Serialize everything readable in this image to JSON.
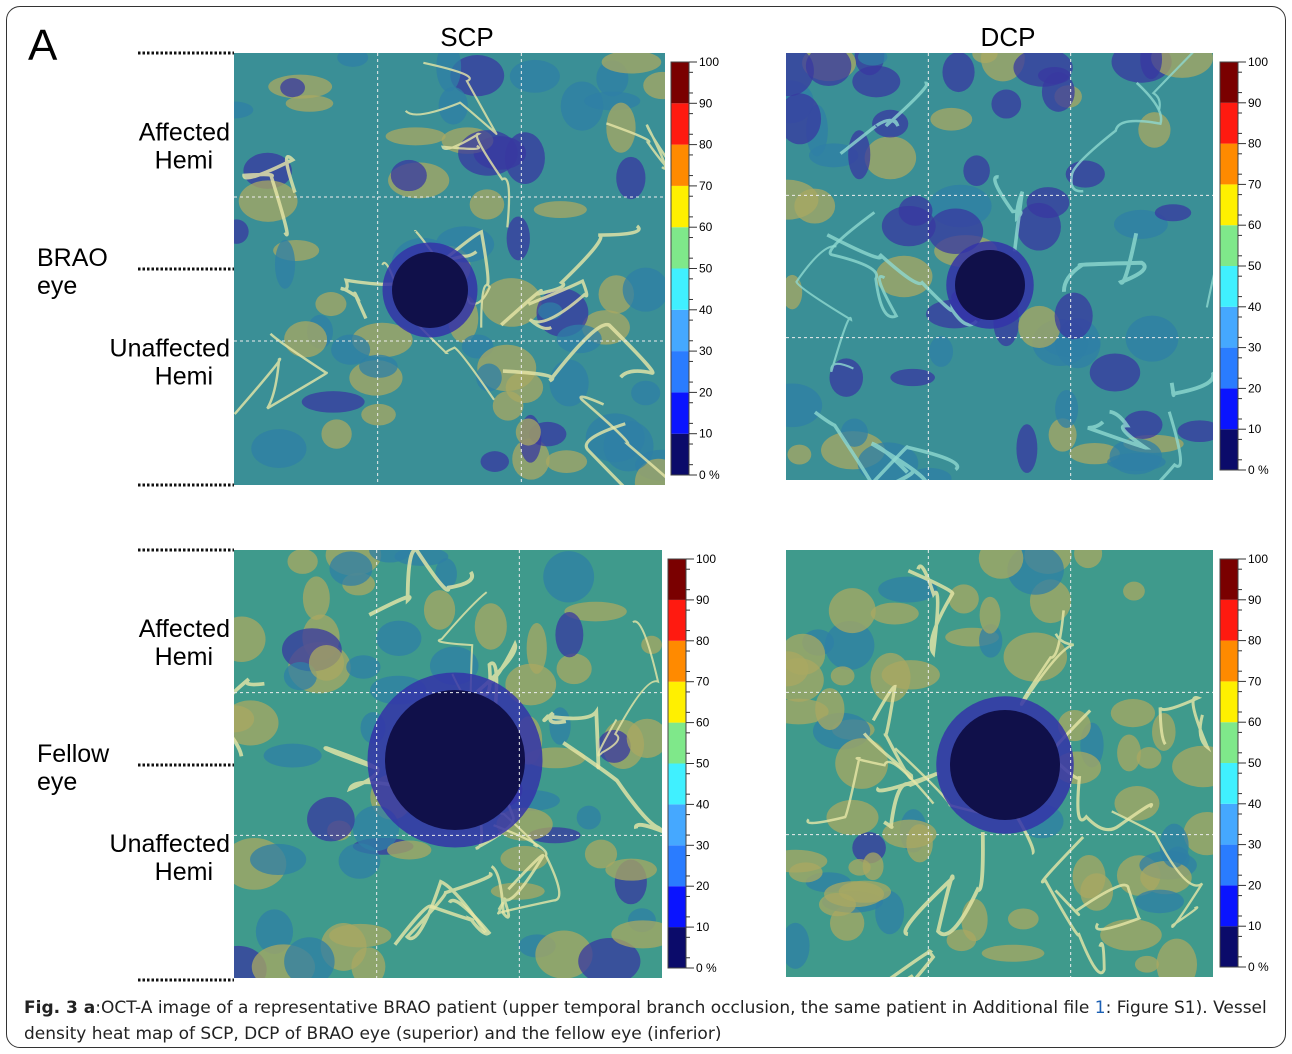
{
  "header": {
    "letter": "A"
  },
  "columns": [
    "SCP",
    "DCP"
  ],
  "rows": [
    {
      "eye": [
        "BRAO",
        "eye"
      ],
      "upper": [
        "Affected",
        "Hemi"
      ],
      "lower": [
        "Unaffected",
        "Hemi"
      ]
    },
    {
      "eye": [
        "Fellow",
        "eye"
      ],
      "upper": [
        "Affected",
        "Hemi"
      ],
      "lower": [
        "Unaffected",
        "Hemi"
      ]
    }
  ],
  "colorbar": {
    "labels": [
      "100",
      "90",
      "80",
      "70",
      "60",
      "50",
      "40",
      "30",
      "20",
      "10",
      "0 %"
    ]
  },
  "caption": {
    "label": "Fig. 3 a",
    "text": ":OCT-A image of a representative BRAO patient (upper temporal branch occlusion, the same patient in Additional file ",
    "link": "1",
    "text2": ": Figure S1). Vessel density heat map of SCP, DCP of BRAO eye (superior) and the fellow eye (inferior)"
  }
}
